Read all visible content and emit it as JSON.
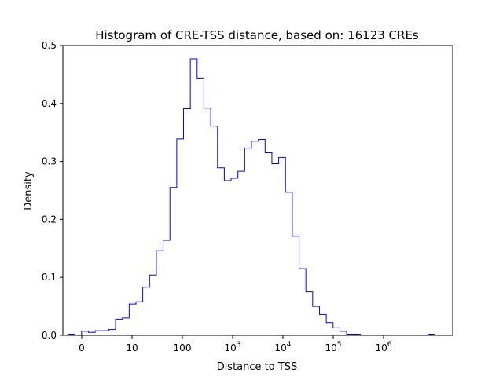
{
  "chart_data": {
    "type": "histogram-step",
    "title": "Histogram of CRE-TSS distance, based on: 16123 CREs",
    "xlabel": "Distance to TSS",
    "ylabel": "Density",
    "xscale": "symlog",
    "ylim": [
      0,
      0.5
    ],
    "yticks": [
      "0.0",
      "0.1",
      "0.2",
      "0.3",
      "0.4",
      "0.5"
    ],
    "xticks": [
      {
        "value": 0,
        "base": "0",
        "sup": ""
      },
      {
        "value": 10,
        "base": "10",
        "sup": ""
      },
      {
        "value": 100,
        "base": "100",
        "sup": ""
      },
      {
        "value": 1000,
        "base": "10",
        "sup": "3"
      },
      {
        "value": 10000,
        "base": "10",
        "sup": "4"
      },
      {
        "value": 100000,
        "base": "10",
        "sup": "5"
      },
      {
        "value": 1000000,
        "base": "10",
        "sup": "6"
      }
    ],
    "step_color": "#0000ff",
    "densities": [
      0.002,
      0.0,
      0.007,
      0.005,
      0.008,
      0.008,
      0.01,
      0.028,
      0.03,
      0.054,
      0.058,
      0.083,
      0.104,
      0.146,
      0.164,
      0.255,
      0.339,
      0.391,
      0.477,
      0.444,
      0.392,
      0.361,
      0.289,
      0.267,
      0.271,
      0.283,
      0.323,
      0.335,
      0.338,
      0.315,
      0.296,
      0.307,
      0.247,
      0.171,
      0.115,
      0.075,
      0.05,
      0.036,
      0.022,
      0.013,
      0.007,
      0.002,
      0.002,
      0.0,
      0.0,
      0.0,
      0.0,
      0.0,
      0.0,
      0.0,
      0.0,
      0.0,
      0.0,
      0.002
    ]
  }
}
